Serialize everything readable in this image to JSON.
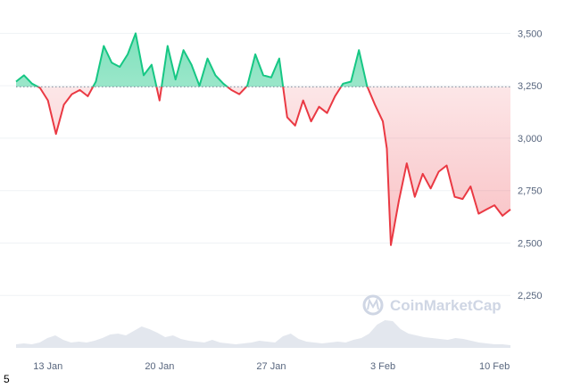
{
  "watermark": "CoinMarketCap",
  "corner_label": "5",
  "chart_data": {
    "type": "area",
    "title": "",
    "xlabel": "",
    "ylabel": "",
    "x_ticks": [
      "13 Jan",
      "20 Jan",
      "27 Jan",
      "3 Feb",
      "10 Feb"
    ],
    "y_ticks": [
      "3,500",
      "3,250",
      "3,000",
      "2,750",
      "2,500",
      "2,250"
    ],
    "y_tick_values": [
      3500,
      3250,
      3000,
      2750,
      2500,
      2250
    ],
    "ylim": [
      2000,
      3625
    ],
    "baseline": 3245,
    "grid": true,
    "colors": {
      "up": "#16c784",
      "down": "#ea3943",
      "volume": "#e3e7ee",
      "grid": "#eff2f5",
      "baseline": "#808a9d"
    },
    "series": [
      {
        "x": [
          "2025-01-11 00:00",
          "2025-01-11 12:00",
          "2025-01-12 00:00",
          "2025-01-12 12:00",
          "2025-01-13 00:00",
          "2025-01-13 12:00",
          "2025-01-14 00:00",
          "2025-01-14 12:00",
          "2025-01-15 00:00",
          "2025-01-15 12:00",
          "2025-01-16 00:00",
          "2025-01-16 12:00",
          "2025-01-17 00:00",
          "2025-01-17 12:00",
          "2025-01-18 00:00",
          "2025-01-18 12:00",
          "2025-01-19 00:00",
          "2025-01-19 12:00",
          "2025-01-20 00:00",
          "2025-01-20 12:00",
          "2025-01-21 00:00",
          "2025-01-21 12:00",
          "2025-01-22 00:00",
          "2025-01-22 12:00",
          "2025-01-23 00:00",
          "2025-01-23 12:00",
          "2025-01-24 00:00",
          "2025-01-24 12:00",
          "2025-01-25 00:00",
          "2025-01-25 12:00",
          "2025-01-26 00:00",
          "2025-01-26 12:00",
          "2025-01-27 00:00",
          "2025-01-27 12:00",
          "2025-01-28 00:00",
          "2025-01-28 12:00",
          "2025-01-29 00:00",
          "2025-01-29 12:00",
          "2025-01-30 00:00",
          "2025-01-30 12:00",
          "2025-01-31 00:00",
          "2025-01-31 12:00",
          "2025-02-01 00:00",
          "2025-02-01 12:00",
          "2025-02-02 00:00",
          "2025-02-02 12:00",
          "2025-02-03 00:00",
          "2025-02-03 06:00",
          "2025-02-03 12:00",
          "2025-02-04 00:00",
          "2025-02-04 12:00",
          "2025-02-05 00:00",
          "2025-02-05 12:00",
          "2025-02-06 00:00",
          "2025-02-06 12:00",
          "2025-02-07 00:00",
          "2025-02-07 12:00",
          "2025-02-08 00:00",
          "2025-02-08 12:00",
          "2025-02-09 00:00",
          "2025-02-09 12:00",
          "2025-02-10 00:00",
          "2025-02-10 12:00",
          "2025-02-11 00:00"
        ],
        "values": [
          3270,
          3300,
          3260,
          3240,
          3180,
          3020,
          3160,
          3210,
          3230,
          3200,
          3270,
          3440,
          3360,
          3340,
          3400,
          3500,
          3300,
          3350,
          3180,
          3440,
          3280,
          3420,
          3350,
          3250,
          3380,
          3300,
          3260,
          3230,
          3210,
          3250,
          3400,
          3300,
          3290,
          3380,
          3100,
          3060,
          3180,
          3080,
          3150,
          3120,
          3200,
          3260,
          3270,
          3420,
          3250,
          3160,
          3080,
          2950,
          2490,
          2700,
          2880,
          2720,
          2830,
          2760,
          2840,
          2870,
          2720,
          2710,
          2770,
          2640,
          2660,
          2680,
          2630,
          2660
        ]
      }
    ],
    "volume_ylim": [
      0,
      100
    ],
    "volume": [
      8,
      10,
      8,
      12,
      22,
      28,
      18,
      12,
      14,
      12,
      16,
      22,
      30,
      32,
      28,
      38,
      48,
      42,
      34,
      24,
      28,
      20,
      16,
      14,
      12,
      18,
      12,
      10,
      8,
      10,
      12,
      16,
      14,
      12,
      26,
      32,
      20,
      14,
      12,
      10,
      12,
      14,
      12,
      18,
      22,
      32,
      52,
      62,
      60,
      42,
      32,
      28,
      24,
      22,
      20,
      18,
      22,
      20,
      16,
      12,
      10,
      8,
      8,
      6
    ]
  }
}
